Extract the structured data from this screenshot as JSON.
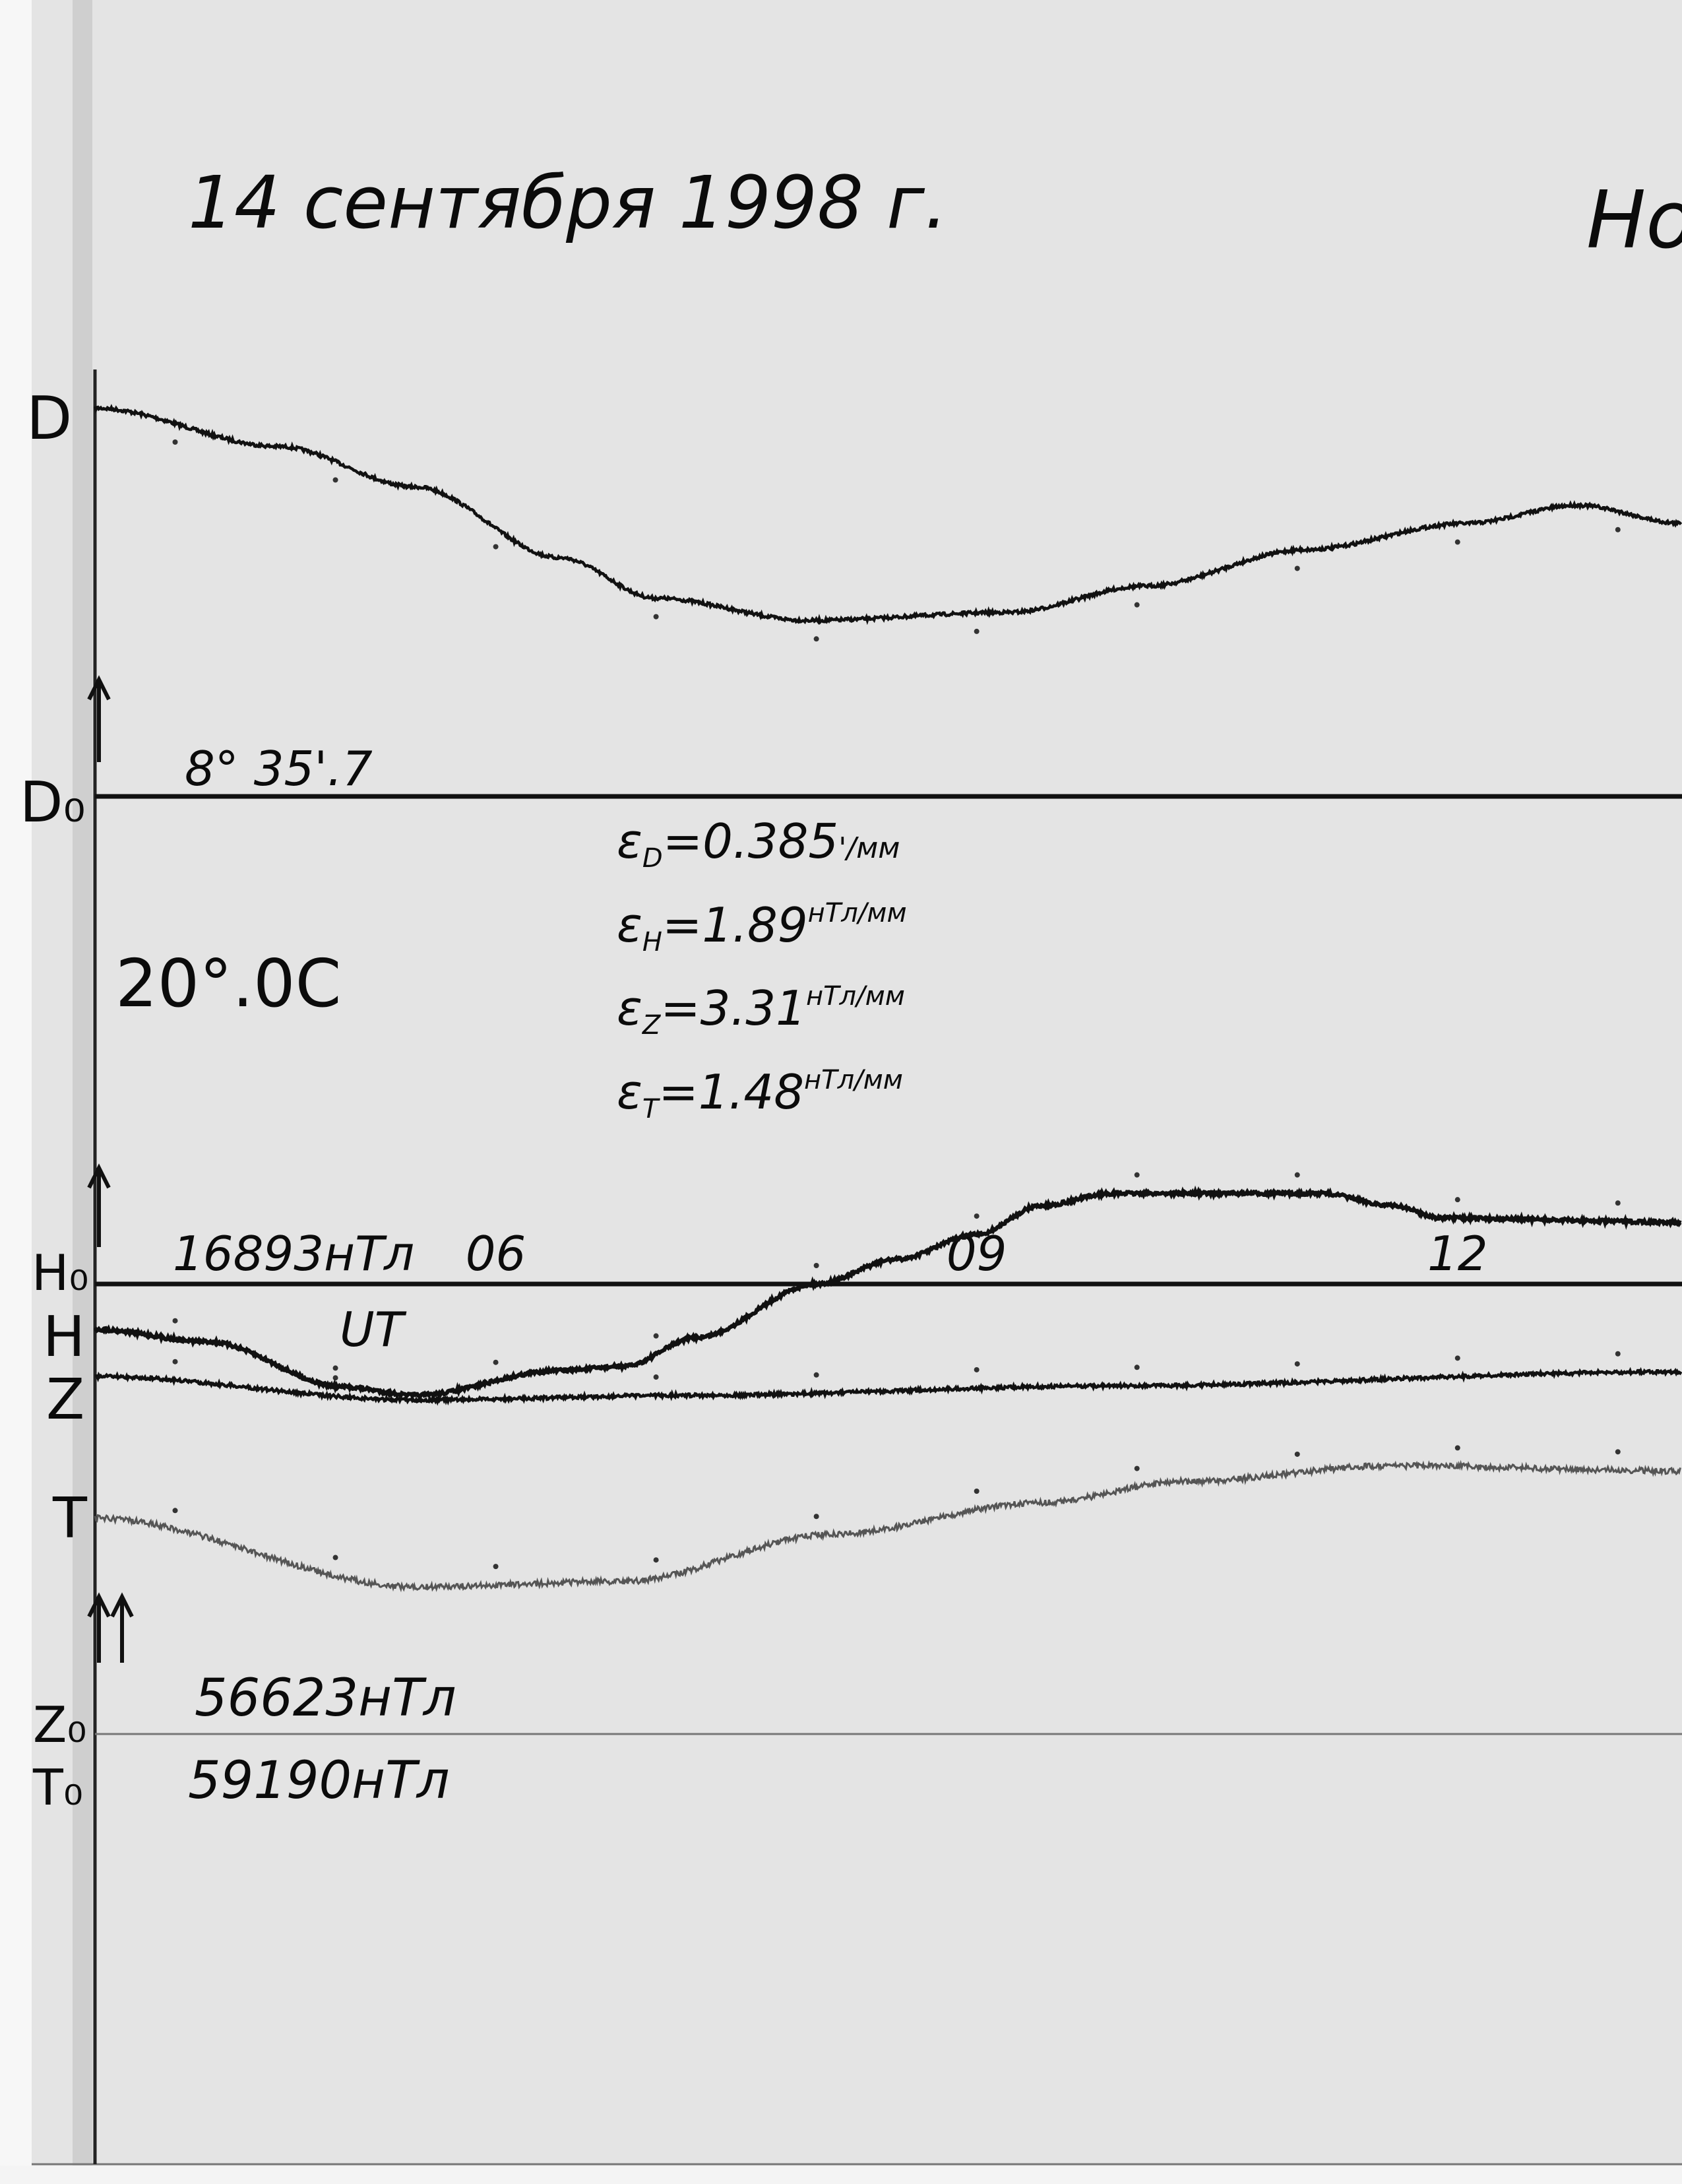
{
  "title": "14 сентября 1998 г.",
  "title_right_fragment": "Но",
  "temperature": "20°.0C",
  "scale_values": [
    {
      "symbol": "ε",
      "sub": "D",
      "value": "=0.385",
      "unit": "'/мм"
    },
    {
      "symbol": "ε",
      "sub": "H",
      "value": "=1.89",
      "unit": "нТл/мм"
    },
    {
      "symbol": "ε",
      "sub": "Z",
      "value": "=3.31",
      "unit": "нТл/мм"
    },
    {
      "symbol": "ε",
      "sub": "T",
      "value": "=1.48",
      "unit": "нТл/мм"
    }
  ],
  "channel_labels": {
    "D": "D",
    "D0": "D₀",
    "H0": "H₀",
    "H": "H",
    "Z": "Z",
    "T": "T",
    "Z0": "Z₀",
    "T0": "T₀"
  },
  "baselines": {
    "D0": "8° 35'.7",
    "H0": "16893нТл",
    "Z0": "56623нТл",
    "T0": "59190нТл"
  },
  "time_axis": {
    "label": "UT",
    "ticks": [
      {
        "hour": 6,
        "label": "06"
      },
      {
        "hour": 9,
        "label": "09"
      },
      {
        "hour": 12,
        "label": "12"
      }
    ]
  },
  "chart_data": {
    "type": "line",
    "title": "14 сентября 1998 г.",
    "xlabel": "UT",
    "xlim": [
      3.5,
      13.4
    ],
    "hour_marks": [
      4,
      5,
      6,
      7,
      8,
      9,
      10,
      11,
      12,
      13
    ],
    "colors": {
      "paper": "#e4e4e4",
      "trace": "#111111",
      "T_trace": "#555555"
    },
    "series": [
      {
        "name": "D",
        "unit": "arcmin",
        "baseline": 515.7,
        "scale": 0.385,
        "points": [
          [
            3.5,
            534.9
          ],
          [
            4.65,
            533.0
          ],
          [
            5.5,
            531.0
          ],
          [
            6.4,
            527.5
          ],
          [
            7.0,
            525.5
          ],
          [
            7.95,
            524.4
          ],
          [
            9.2,
            524.8
          ],
          [
            10.05,
            526.1
          ],
          [
            11.05,
            527.9
          ],
          [
            12.05,
            529.2
          ],
          [
            12.75,
            530.1
          ],
          [
            13.4,
            529.2
          ]
        ]
      },
      {
        "name": "H",
        "unit": "nT",
        "baseline": 16893,
        "scale": 1.89,
        "points": [
          [
            3.5,
            16882
          ],
          [
            4.2,
            16879
          ],
          [
            5.05,
            16868
          ],
          [
            5.5,
            16866
          ],
          [
            6.4,
            16872
          ],
          [
            6.8,
            16873
          ],
          [
            7.25,
            16880
          ],
          [
            8.0,
            16893
          ],
          [
            8.5,
            16899
          ],
          [
            9.0,
            16905
          ],
          [
            9.4,
            16912
          ],
          [
            9.85,
            16915
          ],
          [
            11.15,
            16915
          ],
          [
            11.6,
            16912
          ],
          [
            11.9,
            16909
          ],
          [
            13.4,
            16908
          ]
        ]
      },
      {
        "name": "Z",
        "unit": "nT",
        "baseline": 56623,
        "scale": 3.31,
        "points": [
          [
            3.5,
            56775
          ],
          [
            5.5,
            56765
          ],
          [
            7.25,
            56767
          ],
          [
            9.85,
            56771
          ],
          [
            13.4,
            56777
          ]
        ]
      },
      {
        "name": "T",
        "unit": "nT",
        "baseline": 59190,
        "scale": 1.48,
        "points": [
          [
            3.5,
            59231
          ],
          [
            5.5,
            59218
          ],
          [
            6.8,
            59219
          ],
          [
            8.1,
            59228
          ],
          [
            9.4,
            59234
          ],
          [
            10.3,
            59238
          ],
          [
            11.6,
            59241
          ],
          [
            13.4,
            59240
          ]
        ]
      }
    ]
  }
}
